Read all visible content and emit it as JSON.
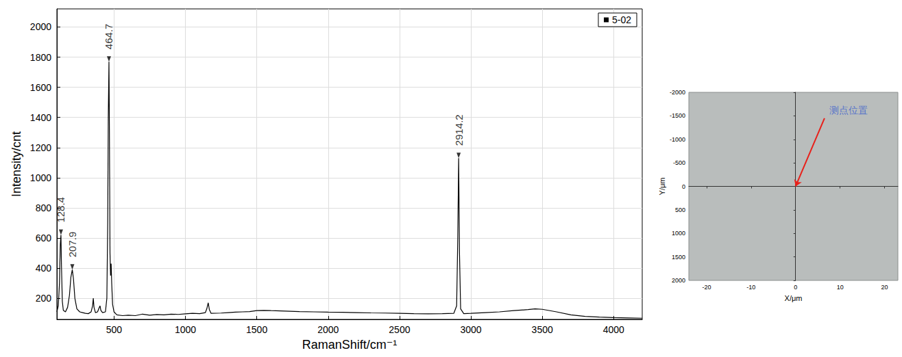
{
  "chart_data": [
    {
      "type": "line",
      "xlabel": "RamanShift/cm⁻¹",
      "ylabel": "Intensity/cnt",
      "xlim": [
        100,
        4200
      ],
      "ylim": [
        60,
        2120
      ],
      "xticks": [
        500,
        1000,
        1500,
        2000,
        2500,
        3000,
        3500,
        4000
      ],
      "yticks": [
        200,
        400,
        600,
        800,
        1000,
        1200,
        1400,
        1600,
        1800,
        2000
      ],
      "grid": true,
      "legend": "upper right",
      "series": [
        {
          "name": "5-02",
          "color": "#000000",
          "x": [
            100,
            110,
            118,
            124,
            128.4,
            132,
            138,
            145,
            160,
            175,
            188,
            198,
            207.9,
            216,
            226,
            240,
            260,
            280,
            300,
            320,
            340,
            350,
            355,
            360,
            370,
            385,
            395,
            402,
            408,
            420,
            440,
            450,
            456,
            460,
            464.7,
            468,
            472,
            476,
            480,
            484,
            490,
            500,
            520,
            560,
            600,
            650,
            700,
            750,
            800,
            850,
            900,
            950,
            1000,
            1050,
            1100,
            1140,
            1150,
            1160,
            1168,
            1180,
            1250,
            1300,
            1350,
            1400,
            1450,
            1500,
            1550,
            1600,
            1700,
            1800,
            1900,
            2000,
            2100,
            2200,
            2300,
            2400,
            2500,
            2600,
            2700,
            2800,
            2880,
            2900,
            2908,
            2914.2,
            2920,
            2928,
            2950,
            3000,
            3100,
            3200,
            3300,
            3400,
            3450,
            3500,
            3600,
            3700,
            3800,
            3900,
            4000,
            4100,
            4200
          ],
          "values": [
            110,
            150,
            300,
            560,
            620,
            420,
            180,
            120,
            110,
            140,
            220,
            340,
            390,
            330,
            200,
            130,
            110,
            105,
            100,
            98,
            110,
            150,
            200,
            140,
            105,
            110,
            135,
            150,
            120,
            105,
            110,
            200,
            700,
            1400,
            1770,
            1300,
            500,
            350,
            430,
            300,
            160,
            110,
            90,
            85,
            88,
            85,
            95,
            88,
            92,
            90,
            95,
            93,
            97,
            100,
            98,
            105,
            130,
            170,
            125,
            100,
            102,
            105,
            108,
            110,
            112,
            118,
            120,
            118,
            115,
            112,
            110,
            108,
            107,
            105,
            103,
            102,
            100,
            98,
            97,
            98,
            100,
            150,
            600,
            1130,
            500,
            130,
            98,
            100,
            105,
            110,
            118,
            125,
            130,
            127,
            110,
            90,
            80,
            75,
            72,
            70,
            68
          ]
        }
      ],
      "annotations": [
        {
          "x": 128.4,
          "y": 620,
          "text": "128.4"
        },
        {
          "x": 207.9,
          "y": 390,
          "text": "207.9"
        },
        {
          "x": 464.7,
          "y": 1770,
          "text": "464.7"
        },
        {
          "x": 2914.2,
          "y": 1130,
          "text": "2914.2"
        }
      ]
    },
    {
      "type": "image",
      "xlabel": "X/μm",
      "ylabel": "Y/μm",
      "xlim": [
        -24,
        23
      ],
      "ylim": [
        2000,
        -2000
      ],
      "xticks": [
        -20,
        -10,
        0,
        10,
        20
      ],
      "yticks": [
        -2000,
        -1500,
        -1000,
        -500,
        0,
        500,
        1000,
        1500,
        2000
      ],
      "annotations": [
        {
          "text": "测点位置",
          "x": 6.5,
          "y": -1450,
          "target_x": 0,
          "target_y": 0,
          "color": "#3a5fcd"
        }
      ]
    }
  ]
}
